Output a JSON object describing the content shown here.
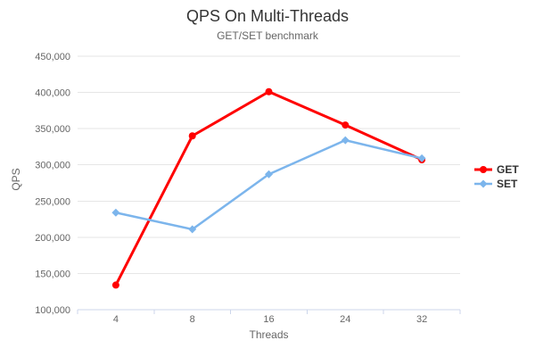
{
  "chart_data": {
    "type": "line",
    "title": "QPS On Multi-Threads",
    "subtitle": "GET/SET benchmark",
    "xlabel": "Threads",
    "ylabel": "QPS",
    "categories": [
      "4",
      "8",
      "16",
      "24",
      "32"
    ],
    "series": [
      {
        "name": "GET",
        "color": "#ff0000",
        "marker": "circle",
        "line_width": 3,
        "values": [
          134000,
          340000,
          401000,
          355000,
          307000
        ]
      },
      {
        "name": "SET",
        "color": "#7cb5ec",
        "marker": "diamond",
        "line_width": 2.5,
        "values": [
          234000,
          211000,
          287000,
          334000,
          309000
        ]
      }
    ],
    "ylim": [
      100000,
      450000
    ],
    "y_tick_step": 50000,
    "y_tick_labels": [
      "100,000",
      "150,000",
      "200,000",
      "250,000",
      "300,000",
      "350,000",
      "400,000",
      "450,000"
    ],
    "grid": true,
    "legend_position": "right",
    "colors": {
      "grid_line": "#e6e6e6",
      "axis_line": "#ccd6eb",
      "tick_label": "#666666",
      "title": "#333333",
      "subtitle": "#666666",
      "legend_text": "#333333"
    }
  }
}
